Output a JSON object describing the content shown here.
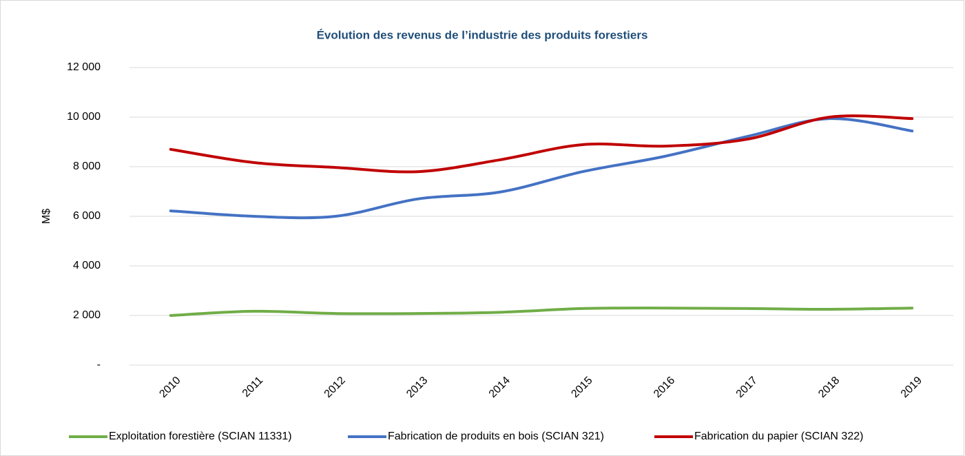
{
  "chart_data": {
    "type": "line",
    "title": "Évolution des revenus de l’industrie des produits forestiers",
    "y_label": "M$",
    "categories": [
      "2010",
      "2011",
      "2012",
      "2013",
      "2014",
      "2015",
      "2016",
      "2017",
      "2018",
      "2019"
    ],
    "series": [
      {
        "name": "Exploitation forestière (SCIAN 11331)",
        "color": "#70ad47",
        "values": [
          2000,
          2170,
          2080,
          2080,
          2130,
          2280,
          2300,
          2280,
          2250,
          2300
        ]
      },
      {
        "name": "Fabrication de produits en bois (SCIAN 321)",
        "color": "#4472c4",
        "values": [
          6220,
          6000,
          6000,
          6700,
          6980,
          7800,
          8420,
          9220,
          9940,
          9440
        ]
      },
      {
        "name": "Fabrication du papier (SCIAN 322)",
        "color": "#c00000",
        "values": [
          8700,
          8170,
          7970,
          7800,
          8280,
          8890,
          8830,
          9110,
          10000,
          9940
        ]
      }
    ],
    "ylim": [
      0,
      12000
    ],
    "yticks": [
      {
        "value": 0,
        "label": "-"
      },
      {
        "value": 2000,
        "label": "2 000"
      },
      {
        "value": 4000,
        "label": "4 000"
      },
      {
        "value": 6000,
        "label": "6 000"
      },
      {
        "value": 8000,
        "label": "8 000"
      },
      {
        "value": 10000,
        "label": "10 000"
      },
      {
        "value": 12000,
        "label": "12 000"
      }
    ],
    "grid": true,
    "legend": "bottom"
  }
}
